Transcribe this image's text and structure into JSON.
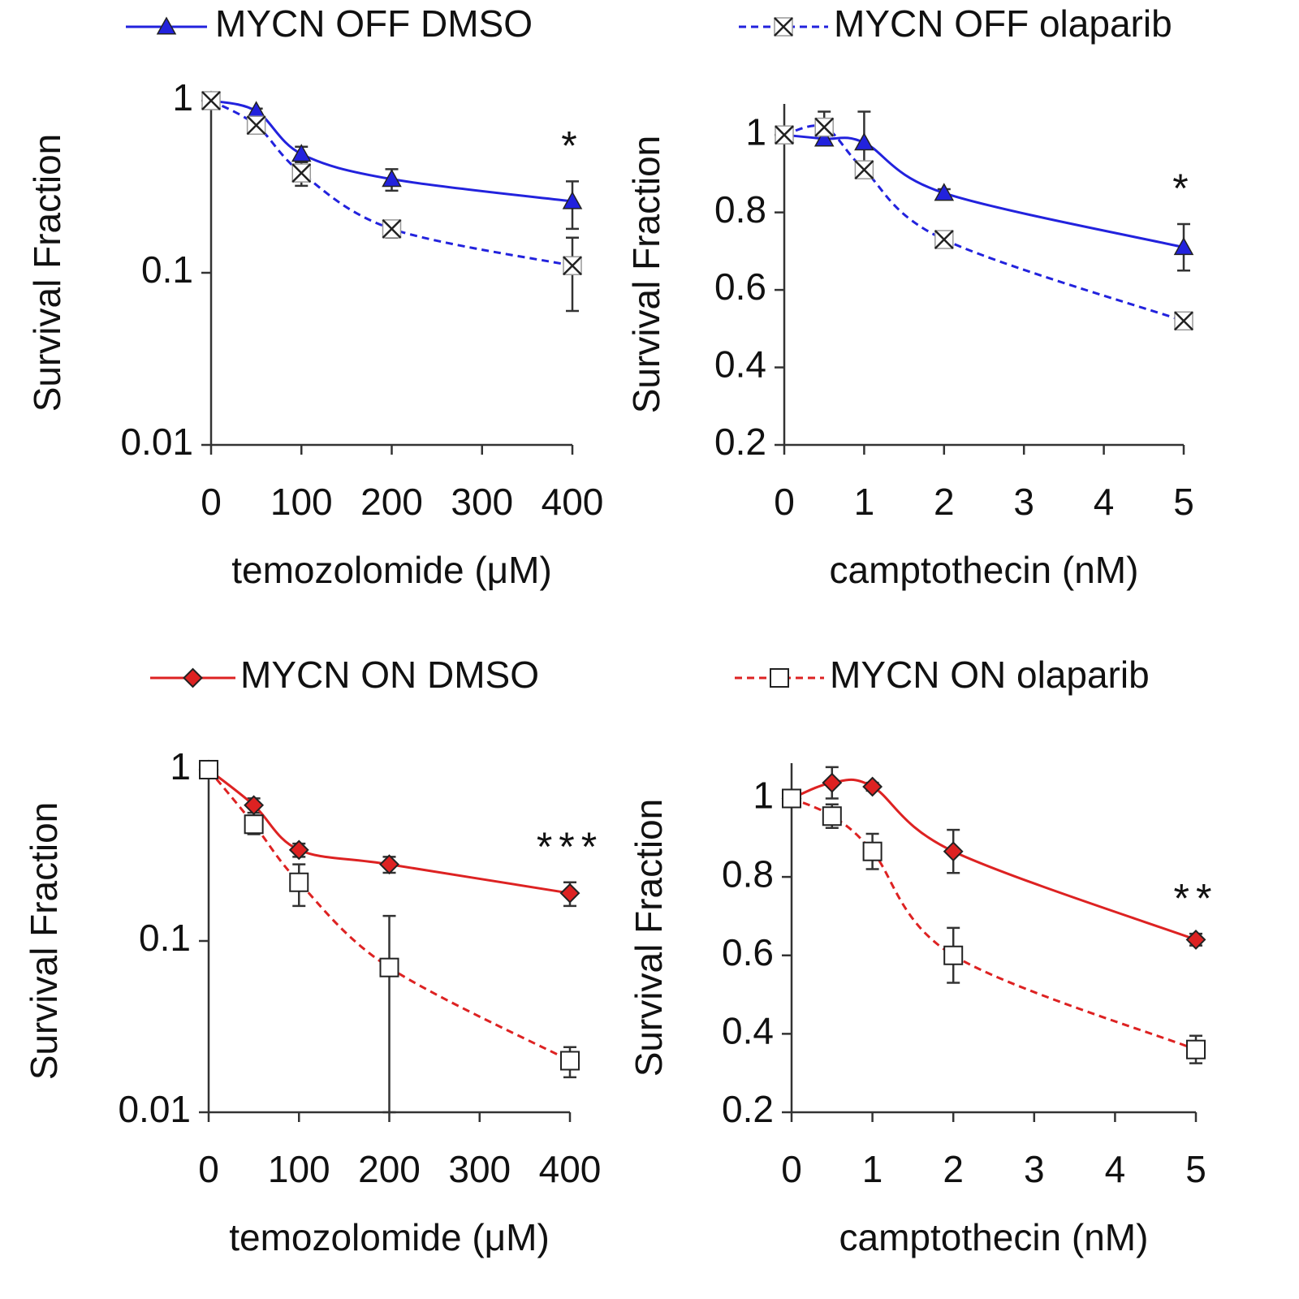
{
  "chart_data": [
    {
      "type": "line",
      "ylabel": "Survival Fraction",
      "xlabel": "temozolomide (μM)",
      "log_y": true,
      "legend": true,
      "annotation": "*",
      "x": [
        0,
        50,
        100,
        200,
        400
      ],
      "xlim": [
        0,
        400
      ],
      "xticks": [
        0,
        100,
        200,
        300,
        400
      ],
      "ylim": [
        0.01,
        1
      ],
      "yticks": [
        0.01,
        0.1,
        1
      ],
      "series": [
        {
          "name": "MYCN OFF DMSO",
          "color": "#2222dd",
          "marker": "triangle",
          "dash": false,
          "values": [
            1,
            0.87,
            0.49,
            0.35,
            0.26
          ],
          "errors": [
            0.02,
            0.03,
            0.05,
            0.05,
            0.08
          ]
        },
        {
          "name": "MYCN OFF olaparib",
          "color": "#2222dd",
          "marker": "x",
          "dash": true,
          "values": [
            1,
            0.72,
            0.38,
            0.18,
            0.11
          ],
          "errors": [
            0.02,
            0.06,
            0.06,
            0.02,
            0.05
          ]
        }
      ]
    },
    {
      "type": "line",
      "ylabel": "Survival Fraction",
      "xlabel": "camptothecin (nM)",
      "log_y": false,
      "legend": false,
      "annotation": "*",
      "x": [
        0,
        0.5,
        1,
        2,
        5
      ],
      "xlim": [
        0,
        5
      ],
      "xticks": [
        0,
        1,
        2,
        3,
        4,
        5
      ],
      "ylim": [
        0.2,
        1.08
      ],
      "yticks": [
        0.2,
        0.4,
        0.6,
        0.8,
        1
      ],
      "series": [
        {
          "color": "#2222dd",
          "marker": "triangle",
          "dash": false,
          "values": [
            1.0,
            0.99,
            0.98,
            0.85,
            0.71
          ],
          "errors": [
            0.01,
            0.01,
            0.08,
            0.01,
            0.06
          ]
        },
        {
          "color": "#2222dd",
          "marker": "x",
          "dash": true,
          "values": [
            1.0,
            1.02,
            0.91,
            0.73,
            0.52
          ],
          "errors": [
            0.02,
            0.04,
            0.01,
            0.02,
            0.01
          ]
        }
      ]
    },
    {
      "type": "line",
      "ylabel": "Survival Fraction",
      "xlabel": "temozolomide (μM)",
      "log_y": true,
      "legend": true,
      "annotation": "***",
      "x": [
        0,
        50,
        100,
        200,
        400
      ],
      "xlim": [
        0,
        400
      ],
      "xticks": [
        0,
        100,
        200,
        300,
        400
      ],
      "ylim": [
        0.01,
        1
      ],
      "yticks": [
        0.01,
        0.1,
        1
      ],
      "series": [
        {
          "name": "MYCN ON DMSO",
          "color": "#dd2222",
          "marker": "diamond",
          "dash": false,
          "values": [
            1,
            0.62,
            0.34,
            0.28,
            0.19
          ],
          "errors": [
            0.02,
            0.06,
            0.03,
            0.03,
            0.03
          ]
        },
        {
          "name": "MYCN ON olaparib",
          "color": "#dd2222",
          "marker": "square",
          "dash": true,
          "values": [
            1,
            0.48,
            0.22,
            0.07,
            0.02
          ],
          "errors": [
            0.02,
            0.06,
            0.06,
            0.07,
            0.004
          ]
        }
      ]
    },
    {
      "type": "line",
      "ylabel": "Survival Fraction",
      "xlabel": "camptothecin (nM)",
      "log_y": false,
      "legend": false,
      "annotation": "**",
      "x": [
        0,
        0.5,
        1,
        2,
        5
      ],
      "xlim": [
        0,
        5
      ],
      "xticks": [
        0,
        1,
        2,
        3,
        4,
        5
      ],
      "ylim": [
        0.2,
        1.09
      ],
      "yticks": [
        0.2,
        0.4,
        0.6,
        0.8,
        1
      ],
      "series": [
        {
          "color": "#dd2222",
          "marker": "diamond",
          "dash": false,
          "values": [
            1.0,
            1.04,
            1.03,
            0.865,
            0.64
          ],
          "errors": [
            0.01,
            0.04,
            0.01,
            0.055,
            0.015
          ]
        },
        {
          "color": "#dd2222",
          "marker": "square",
          "dash": true,
          "values": [
            1.0,
            0.955,
            0.865,
            0.6,
            0.36
          ],
          "errors": [
            0.01,
            0.03,
            0.045,
            0.07,
            0.035
          ]
        }
      ]
    }
  ]
}
